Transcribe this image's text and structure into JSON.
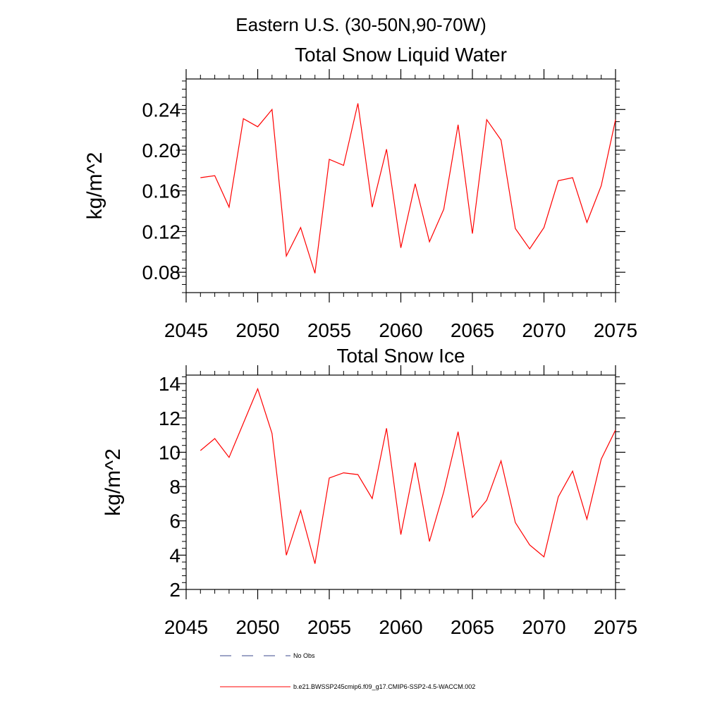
{
  "figure": {
    "suptitle": "Eastern U.S. (30-50N,90-70W)"
  },
  "chart_data": [
    {
      "type": "line",
      "title": "Total Snow Liquid Water",
      "xlabel": "",
      "ylabel": "kg/m^2",
      "xlim": [
        2045,
        2075
      ],
      "ylim": [
        0.06,
        0.27
      ],
      "x_ticks": [
        2045,
        2050,
        2055,
        2060,
        2065,
        2070,
        2075
      ],
      "x_tick_labels": [
        "2045",
        "2050",
        "2055",
        "2060",
        "2065",
        "2070",
        "2075"
      ],
      "y_ticks": [
        0.08,
        0.12,
        0.16,
        0.2,
        0.24
      ],
      "y_tick_labels": [
        "0.08",
        "0.12",
        "0.16",
        "0.20",
        "0.24"
      ],
      "x": [
        2046,
        2047,
        2048,
        2049,
        2050,
        2051,
        2052,
        2053,
        2054,
        2055,
        2056,
        2057,
        2058,
        2059,
        2060,
        2061,
        2062,
        2063,
        2064,
        2065,
        2066,
        2067,
        2068,
        2069,
        2070,
        2071,
        2072,
        2073,
        2074,
        2075
      ],
      "series": [
        {
          "name": "b.e21.BWSSP245cmip6.f09_g17.CMIP6-SSP2-4.5-WACCM.002",
          "color": "#ff0000",
          "values": [
            0.173,
            0.175,
            0.144,
            0.231,
            0.223,
            0.24,
            0.096,
            0.124,
            0.079,
            0.191,
            0.185,
            0.246,
            0.144,
            0.201,
            0.104,
            0.167,
            0.11,
            0.142,
            0.225,
            0.118,
            0.23,
            0.21,
            0.123,
            0.103,
            0.124,
            0.17,
            0.173,
            0.129,
            0.165,
            0.23
          ]
        }
      ]
    },
    {
      "type": "line",
      "title": "Total Snow Ice",
      "xlabel": "",
      "ylabel": "kg/m^2",
      "xlim": [
        2045,
        2075
      ],
      "ylim": [
        2,
        14.5
      ],
      "x_ticks": [
        2045,
        2050,
        2055,
        2060,
        2065,
        2070,
        2075
      ],
      "x_tick_labels": [
        "2045",
        "2050",
        "2055",
        "2060",
        "2065",
        "2070",
        "2075"
      ],
      "y_ticks": [
        2,
        4,
        6,
        8,
        10,
        12,
        14
      ],
      "y_tick_labels": [
        "2",
        "4",
        "6",
        "8",
        "10",
        "12",
        "14"
      ],
      "x": [
        2046,
        2047,
        2048,
        2049,
        2050,
        2051,
        2052,
        2053,
        2054,
        2055,
        2056,
        2057,
        2058,
        2059,
        2060,
        2061,
        2062,
        2063,
        2064,
        2065,
        2066,
        2067,
        2068,
        2069,
        2070,
        2071,
        2072,
        2073,
        2074,
        2075
      ],
      "series": [
        {
          "name": "b.e21.BWSSP245cmip6.f09_g17.CMIP6-SSP2-4.5-WACCM.002",
          "color": "#ff0000",
          "values": [
            10.1,
            10.8,
            9.7,
            11.7,
            13.7,
            11.1,
            4.0,
            6.6,
            3.5,
            8.5,
            8.8,
            8.7,
            7.3,
            11.4,
            5.2,
            9.4,
            4.8,
            7.7,
            11.2,
            6.2,
            7.2,
            9.5,
            5.9,
            4.6,
            3.9,
            7.4,
            8.9,
            6.1,
            9.6,
            11.3
          ]
        }
      ]
    }
  ],
  "legend": {
    "items": [
      {
        "label": "No Obs",
        "color": "#3b4a8c",
        "style": "dashed"
      },
      {
        "label": "b.e21.BWSSP245cmip6.f09_g17.CMIP6-SSP2-4.5-WACCM.002",
        "color": "#ff0000",
        "style": "solid"
      }
    ]
  }
}
